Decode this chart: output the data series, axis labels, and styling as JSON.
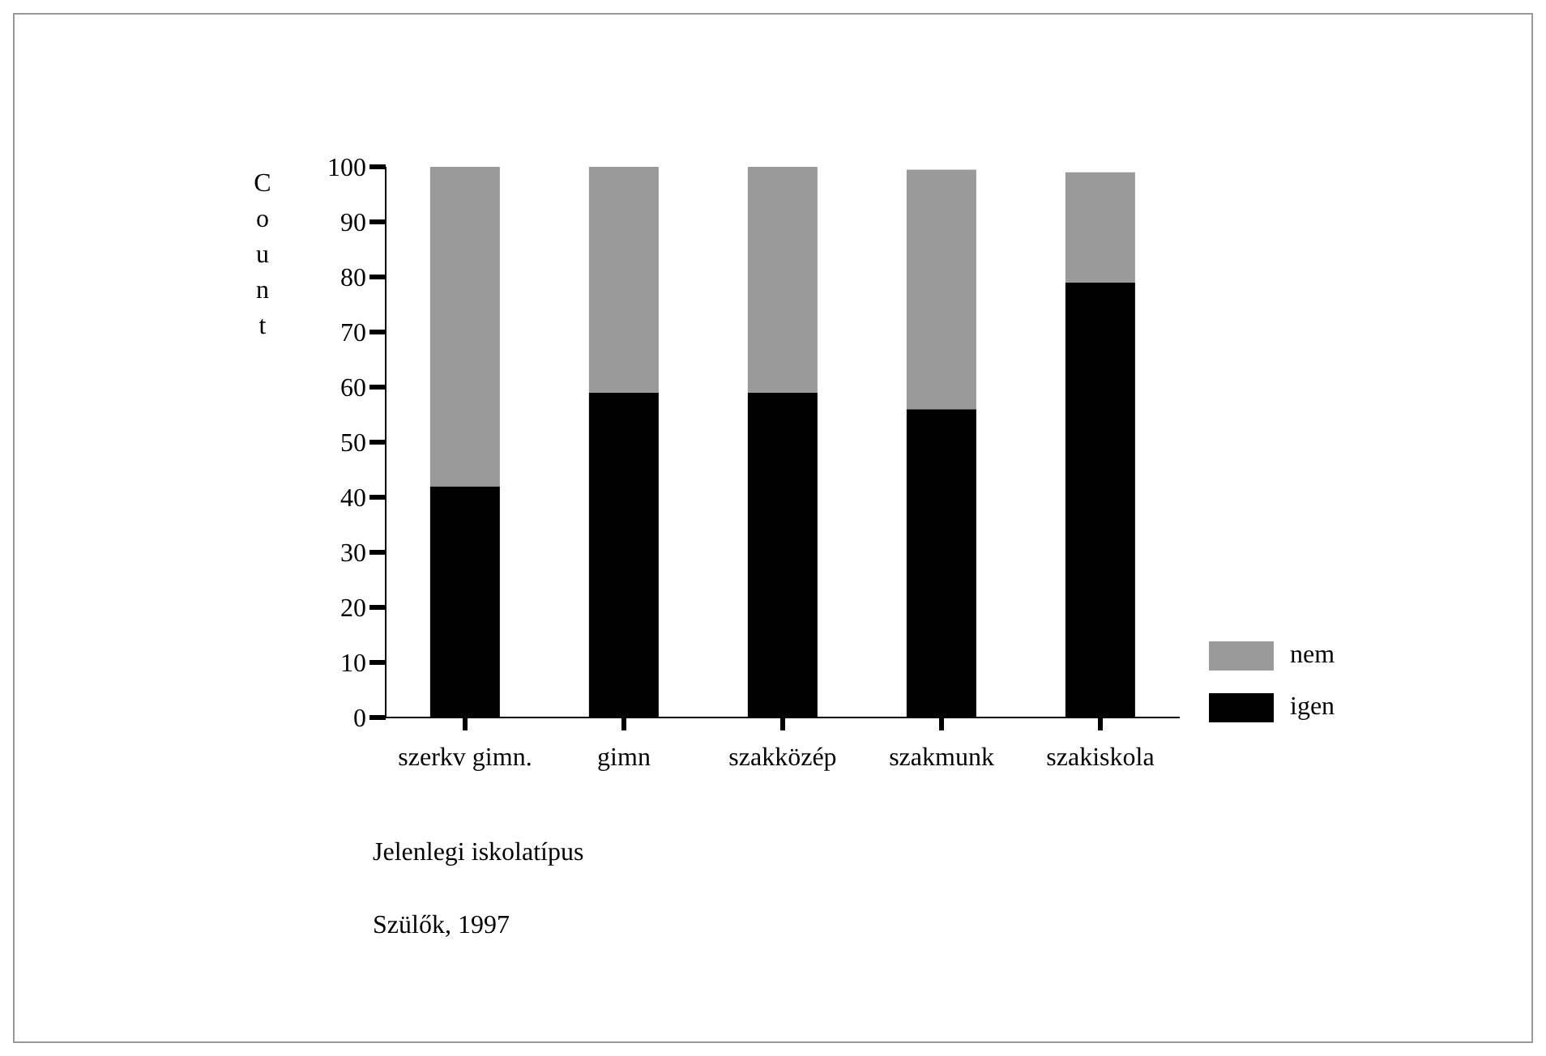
{
  "chart_data": {
    "type": "bar",
    "stacked": true,
    "ylabel": "Count",
    "xlabel": "Jelenlegi iskolatípus",
    "categories": [
      "szerkv gimn.",
      "gimn",
      "szakközép",
      "szakmunk",
      "szakiskola"
    ],
    "series": [
      {
        "name": "igen",
        "color": "#000000",
        "values": [
          42,
          59,
          59,
          56,
          79
        ]
      },
      {
        "name": "nem",
        "color": "#9a9a9a",
        "values": [
          58,
          41,
          41,
          43.5,
          20
        ]
      }
    ],
    "ylim": [
      0,
      100
    ],
    "yticks": [
      0,
      10,
      20,
      30,
      40,
      50,
      60,
      70,
      80,
      90,
      100
    ],
    "grid": false,
    "legend": "bottom right",
    "annotations": [
      "Szülők, 1997"
    ]
  }
}
